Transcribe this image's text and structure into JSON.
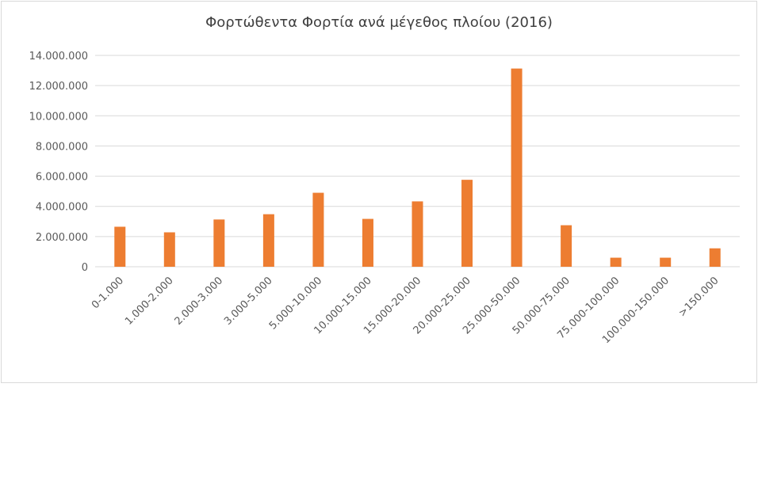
{
  "chart_data": {
    "type": "bar",
    "title": "Φορτώθεντα  Φορτία  ανά μέγεθος πλοίου (2016)",
    "categories": [
      "0-1.000",
      "1.000-2.000",
      "2.000-3.000",
      "3.000-5.000",
      "5.000-10.000",
      "10.000-15.000",
      "15.000-20.000",
      "20.000-25.000",
      "25.000-50.000",
      "50.000-75.000",
      "75.000-100.000",
      "100.000-150.000",
      ">150.000"
    ],
    "values": [
      2650000,
      2280000,
      3130000,
      3480000,
      4900000,
      3170000,
      4330000,
      5760000,
      13130000,
      2750000,
      600000,
      600000,
      1220000
    ],
    "ylim": [
      0,
      14000000
    ],
    "yticks": [
      0,
      2000000,
      4000000,
      6000000,
      8000000,
      10000000,
      12000000,
      14000000
    ],
    "ytick_labels": [
      "0",
      "2.000.000",
      "4.000.000",
      "6.000.000",
      "8.000.000",
      "10.000.000",
      "12.000.000",
      "14.000.000"
    ],
    "xlabel": "",
    "ylabel": "",
    "grid": true,
    "legend": "none",
    "bar_color": "#ED7D31",
    "grid_color": "#D9D9D9",
    "text_color": "#595959"
  }
}
